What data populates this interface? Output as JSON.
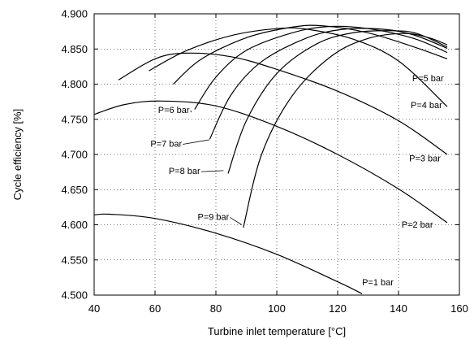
{
  "chart_data": {
    "type": "line",
    "xlabel": "Turbine inlet temperature [°C]",
    "ylabel": "Cycle efficiency [%]",
    "xlim": [
      40,
      160
    ],
    "ylim": [
      4.5,
      4.9
    ],
    "x_ticks": [
      "40",
      "60",
      "80",
      "100",
      "120",
      "140",
      "160"
    ],
    "y_ticks": [
      "4.500",
      "4.550",
      "4.600",
      "4.650",
      "4.700",
      "4.750",
      "4.800",
      "4.850",
      "4.900"
    ],
    "grid": true,
    "series": [
      {
        "name": "P=1 bar",
        "x": [
          40,
          45,
          60,
          80,
          100,
          120,
          128
        ],
        "y": [
          4.614,
          4.615,
          4.609,
          4.588,
          4.558,
          4.519,
          4.502
        ]
      },
      {
        "name": "P=2 bar",
        "x": [
          40,
          50,
          62,
          80,
          100,
          120,
          140,
          156
        ],
        "y": [
          4.757,
          4.771,
          4.776,
          4.769,
          4.74,
          4.7,
          4.651,
          4.603
        ]
      },
      {
        "name": "P=3 bar",
        "x": [
          48,
          60,
          70,
          85,
          100,
          120,
          140,
          156
        ],
        "y": [
          4.806,
          4.836,
          4.844,
          4.839,
          4.821,
          4.79,
          4.748,
          4.7
        ]
      },
      {
        "name": "P=4 bar",
        "x": [
          58,
          70,
          85,
          100,
          110,
          125,
          140,
          156
        ],
        "y": [
          4.819,
          4.847,
          4.869,
          4.879,
          4.878,
          4.864,
          4.833,
          4.768
        ]
      },
      {
        "name": "P=5 bar",
        "x": [
          66,
          75,
          90,
          105,
          115,
          130,
          145,
          156
        ],
        "y": [
          4.8,
          4.835,
          4.866,
          4.881,
          4.883,
          4.873,
          4.853,
          4.836
        ]
      },
      {
        "name": "P=6 bar",
        "x": [
          73,
          80,
          90,
          105,
          117,
          130,
          145,
          156
        ],
        "y": [
          4.764,
          4.81,
          4.848,
          4.873,
          4.882,
          4.879,
          4.865,
          4.845
        ]
      },
      {
        "name": "P=7 bar",
        "x": [
          78,
          85,
          95,
          110,
          122,
          135,
          145,
          156
        ],
        "y": [
          4.722,
          4.785,
          4.832,
          4.866,
          4.878,
          4.878,
          4.87,
          4.851
        ]
      },
      {
        "name": "P=8 bar",
        "x": [
          84,
          90,
          100,
          113,
          125,
          138,
          146,
          156
        ],
        "y": [
          4.673,
          4.748,
          4.815,
          4.857,
          4.873,
          4.876,
          4.872,
          4.853
        ]
      },
      {
        "name": "P=9 bar",
        "x": [
          89,
          95,
          105,
          118,
          130,
          142,
          150,
          156
        ],
        "y": [
          4.596,
          4.7,
          4.783,
          4.84,
          4.865,
          4.872,
          4.866,
          4.856
        ]
      }
    ]
  }
}
